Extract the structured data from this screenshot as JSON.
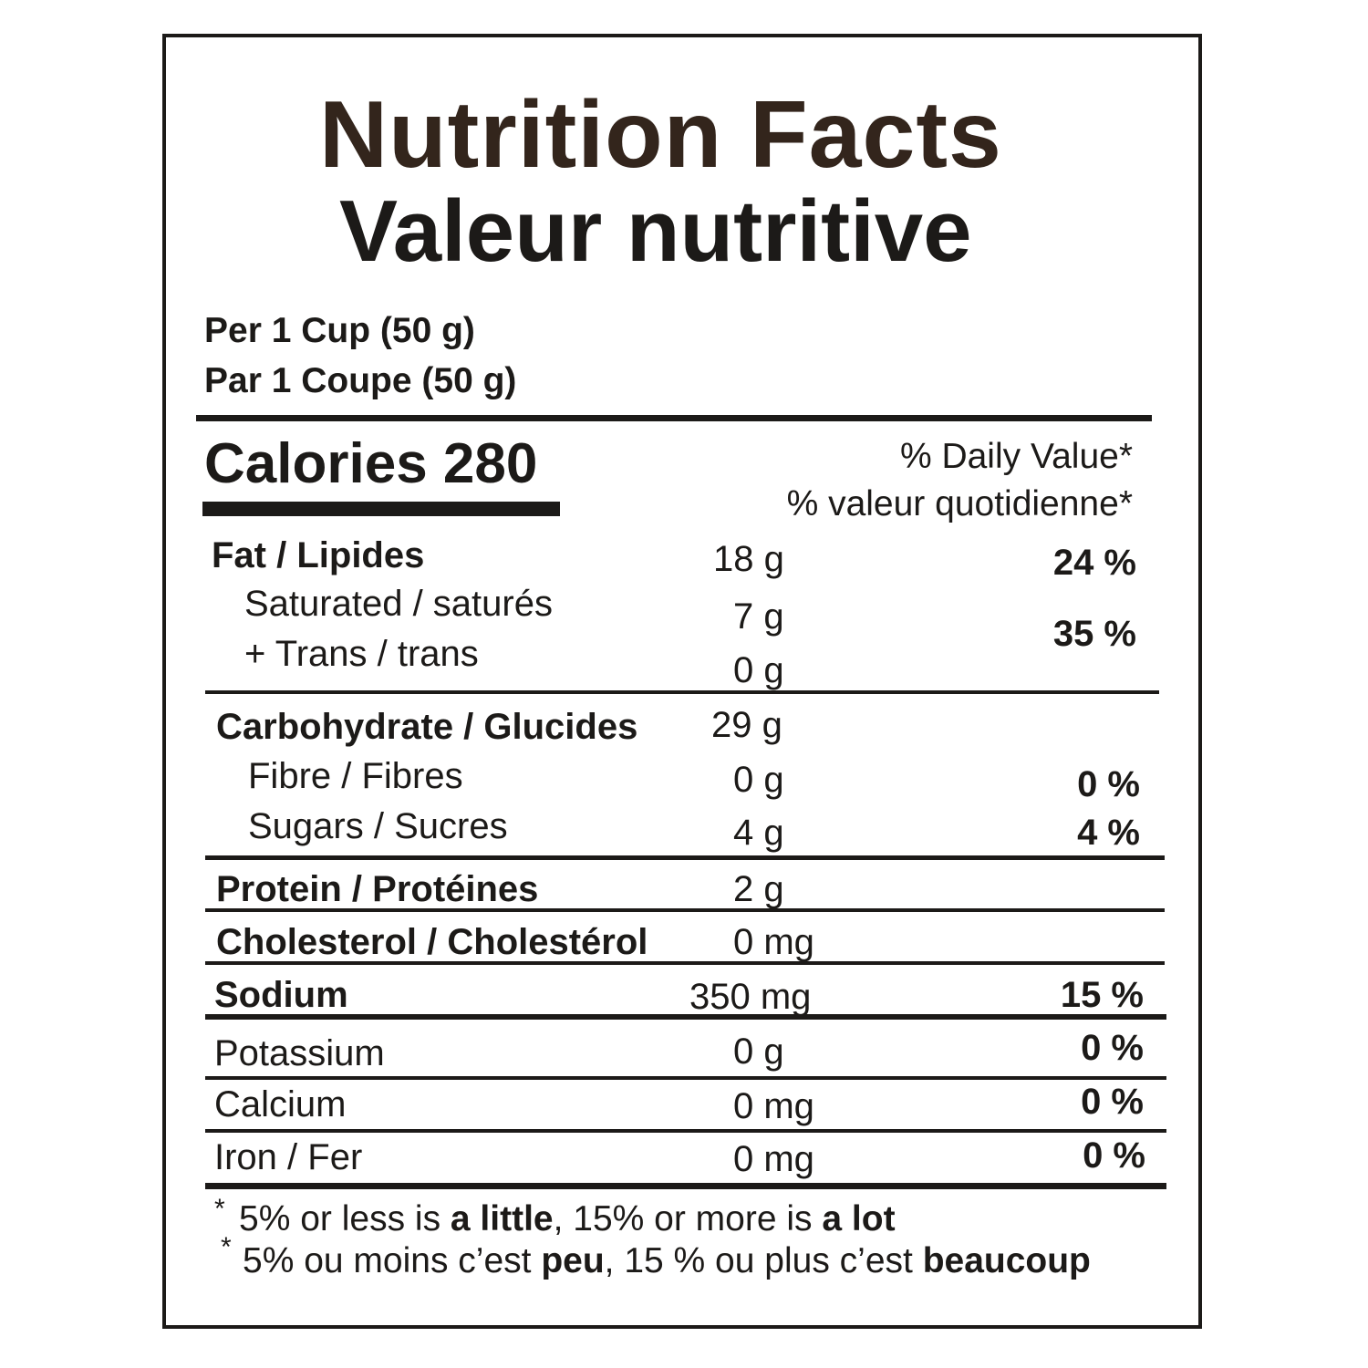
{
  "title_en": "Nutrition Facts",
  "title_fr": "Valeur nutritive",
  "serving_en": "Per 1 Cup (50 g)",
  "serving_fr": "Par 1 Coupe (50 g)",
  "calories": "Calories 280",
  "dv_en": "% Daily Value*",
  "dv_fr": "% valeur quotidienne*",
  "rows": {
    "fat": {
      "name": "Fat  / Lipides",
      "amount": "18 g",
      "dv": "24 %"
    },
    "saturated": {
      "name": "Saturated / saturés",
      "amount": "7 g"
    },
    "trans": {
      "name": "+ Trans / trans",
      "amount": "0 g"
    },
    "sat_trans_dv": "35 %",
    "carb": {
      "name": "Carbohydrate  / Glucides",
      "amount": "29 g"
    },
    "fibre": {
      "name": "Fibre / Fibres",
      "amount": "0 g",
      "dv": "0 %"
    },
    "sugars": {
      "name": "Sugars / Sucres",
      "amount": "4 g",
      "dv": "4 %"
    },
    "protein": {
      "name": "Protein / Protéines",
      "amount": "2 g"
    },
    "cholesterol": {
      "name": "Cholesterol / Cholestérol",
      "amount": "0 mg"
    },
    "sodium": {
      "name": "Sodium",
      "amount": "350 mg",
      "dv": "15 %"
    },
    "potassium": {
      "name": "Potassium",
      "amount": "0 g",
      "dv": "0 %"
    },
    "calcium": {
      "name": "Calcium",
      "amount": "0 mg",
      "dv": "0 %"
    },
    "iron": {
      "name": "Iron / Fer",
      "amount": "0 mg",
      "dv": "0 %"
    }
  },
  "footnote_en": {
    "pre": "5% or less is ",
    "bold1": "a little",
    "mid": ", 15% or more is ",
    "bold2": "a lot"
  },
  "footnote_fr": {
    "pre": "5% ou moins c’est ",
    "bold1": "peu",
    "mid": ", 15 % ou plus c’est ",
    "bold2": "beaucoup"
  },
  "footnote_mark": "*"
}
